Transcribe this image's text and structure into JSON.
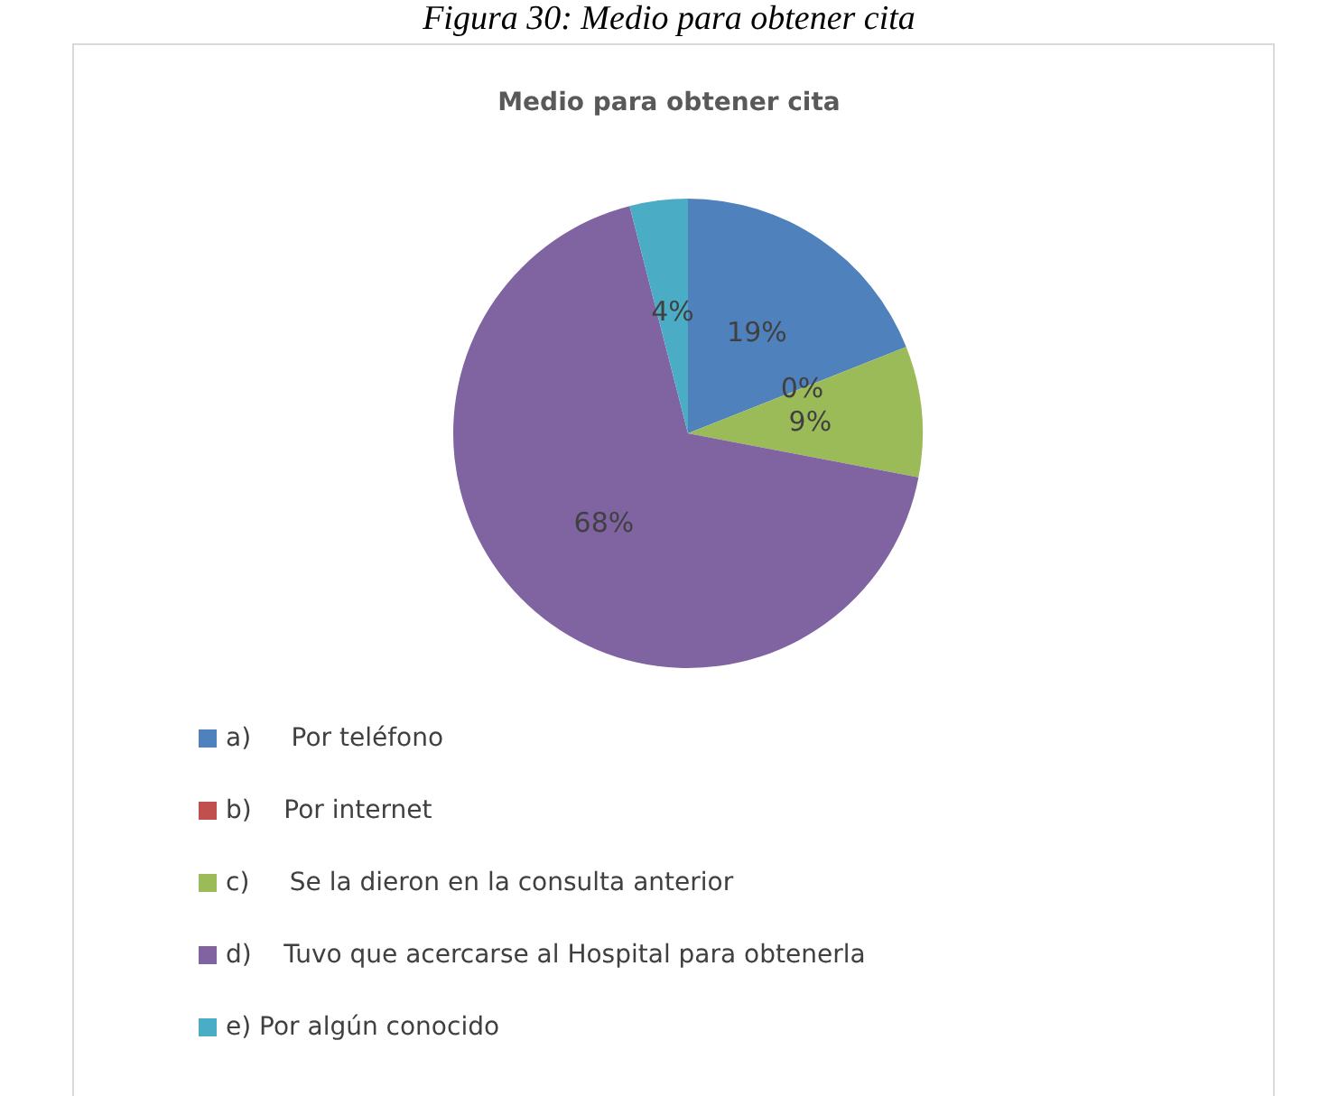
{
  "chart_data": {
    "type": "pie",
    "title": "Medio para obtener cita",
    "annotations": [
      "Figura 30: Medio para obtener cita"
    ],
    "categories": [
      "a)     Por teléfono",
      "b)    Por internet",
      "c)     Se la dieron en la consulta anterior",
      "d)    Tuvo que acercarse al Hospital para obtenerla",
      "e) Por algún conocido"
    ],
    "values": [
      19,
      0,
      9,
      68,
      4
    ],
    "colors": [
      "#4f81bd",
      "#c0504d",
      "#9bbb59",
      "#8064a2",
      "#4bacc6"
    ],
    "value_labels": [
      "19%",
      "0%",
      "9%",
      "68%",
      "4%"
    ],
    "legend": "bottom"
  }
}
